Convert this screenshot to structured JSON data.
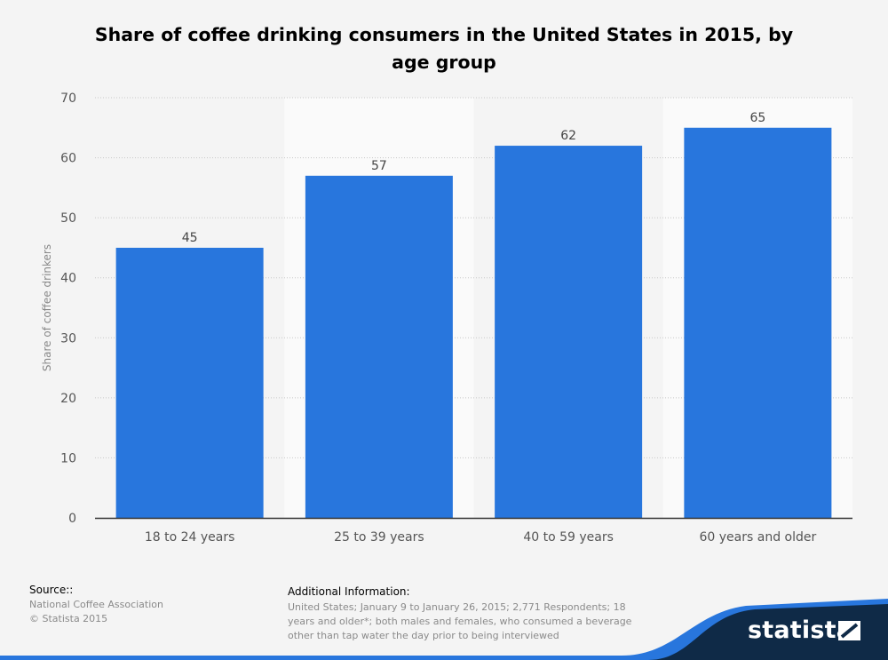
{
  "header": {
    "title": "Share of coffee drinking consumers in the United States in 2015, by age group"
  },
  "chart_data": {
    "type": "bar",
    "title": "Share of coffee drinking consumers in the United States in 2015, by age group",
    "categories": [
      "18 to 24 years",
      "25 to 39 years",
      "40 to 59 years",
      "60 years and older"
    ],
    "values": [
      45,
      57,
      62,
      65
    ],
    "xlabel": "",
    "ylabel": "Share of coffee drinkers",
    "ylim": [
      0,
      70
    ],
    "yticks": [
      0,
      10,
      20,
      30,
      40,
      50,
      60,
      70
    ],
    "grid": true,
    "legend": "none",
    "bar_color": "#2876dd"
  },
  "footer": {
    "source_label": "Source::",
    "source_text": "National Coffee Association",
    "copyright": "© Statista 2015",
    "additional_label": "Additional Information:",
    "additional_text": "United States; January 9 to January 26, 2015; 2,771 Respondents; 18 years and older*; both males and females, who consumed a beverage other than tap water the day prior to being interviewed"
  },
  "brand": {
    "logo_text": "statista",
    "logo_icon": "statista-logo-icon",
    "accent": "#2876dd",
    "dark": "#0f2a47"
  }
}
